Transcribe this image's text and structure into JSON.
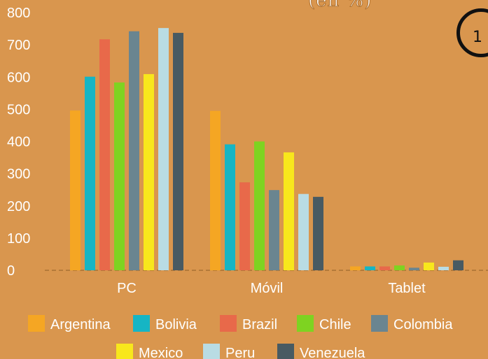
{
  "header": {
    "title_fragment": "(en %)",
    "badge_fragment": "1"
  },
  "chart_data": {
    "type": "bar",
    "categories": [
      "PC",
      "Móvil",
      "Tablet"
    ],
    "series": [
      {
        "name": "Argentina",
        "values": [
          496,
          495,
          12
        ],
        "color": "#f5a623"
      },
      {
        "name": "Bolivia",
        "values": [
          601,
          391,
          12
        ],
        "color": "#16b5c4"
      },
      {
        "name": "Brazil",
        "values": [
          717,
          273,
          12
        ],
        "color": "#e8694a"
      },
      {
        "name": "Chile",
        "values": [
          583,
          400,
          15
        ],
        "color": "#7ed321"
      },
      {
        "name": "Colombia",
        "values": [
          742,
          249,
          8
        ],
        "color": "#6a8590"
      },
      {
        "name": "Mexico",
        "values": [
          609,
          366,
          24
        ],
        "color": "#f8e71c"
      },
      {
        "name": "Peru",
        "values": [
          752,
          237,
          11
        ],
        "color": "#b9dce4"
      },
      {
        "name": "Venezuela",
        "values": [
          737,
          228,
          31
        ],
        "color": "#485a62"
      }
    ],
    "ylim": [
      0,
      800
    ],
    "yticks": [
      "0",
      "100",
      "200",
      "300",
      "400",
      "500",
      "600",
      "700",
      "800"
    ],
    "grid": false,
    "legend": "bottom"
  }
}
